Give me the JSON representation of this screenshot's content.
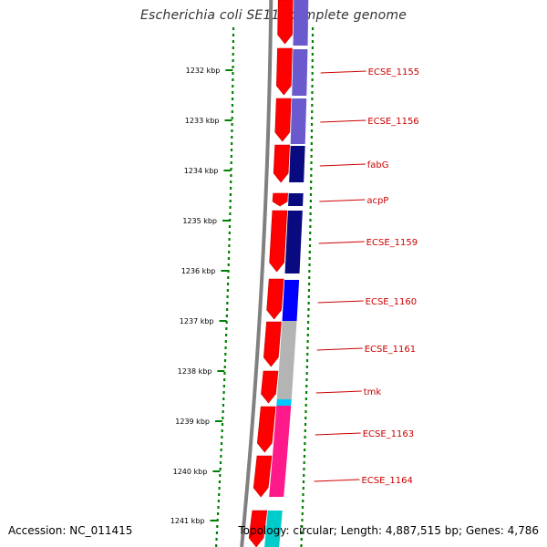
{
  "title": "Escherichia coli SE11, complete genome",
  "accession": "Accession: NC_011415",
  "summary": "Topology: circular; Length: 4,887,515 bp; Genes: 4,786",
  "colors": {
    "forward_cds": "#ff0000",
    "backbone": "#808080",
    "tick_dots": "#008000",
    "label_text": "#cc0000",
    "ticks": "#000000",
    "purple": "#6a5acd",
    "navy": "#0a0a80",
    "blue": "#0000ff",
    "teal": "#008080",
    "gray": "#b4b4b4",
    "cyan": "#00c8ff",
    "magenta": "#ff1a8c"
  },
  "kbp_ticks": [
    "1232 kbp",
    "1233 kbp",
    "1234 kbp",
    "1235 kbp",
    "1236 kbp",
    "1237 kbp",
    "1238 kbp",
    "1239 kbp",
    "1240 kbp",
    "1241 kbp"
  ],
  "gene_labels": [
    "ECSE_1155",
    "ECSE_1156",
    "fabG",
    "acpP",
    "ECSE_1159",
    "ECSE_1160",
    "ECSE_1161",
    "tmk",
    "ECSE_1163",
    "ECSE_1164"
  ]
}
